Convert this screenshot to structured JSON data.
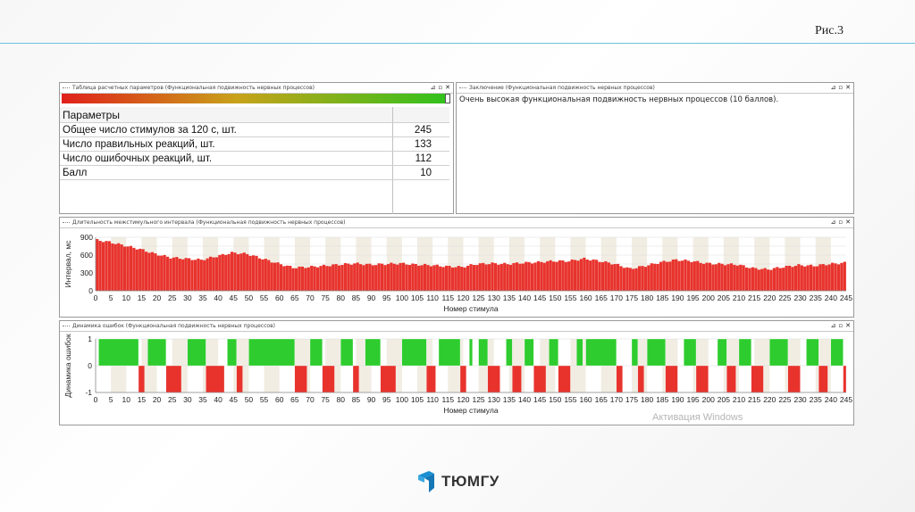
{
  "slide": {
    "title": "Рис.3"
  },
  "params_panel": {
    "title": "Таблица расчетных параметров (Функциональная подвижность нервных процессов)",
    "header": "Параметры",
    "rows": [
      {
        "label": "Общее число стимулов за 120 с, шт.",
        "value": "245"
      },
      {
        "label": "Число правильных реакций, шт.",
        "value": "133"
      },
      {
        "label": "Число ошибочных реакций, шт.",
        "value": "112"
      },
      {
        "label": "Балл",
        "value": "10"
      }
    ],
    "colors": {
      "gradient_start": "#e0201a",
      "gradient_end": "#2fc21c"
    }
  },
  "conclusion_panel": {
    "title": "Заключение (Функциональная подвижность нервных процессов)",
    "text": "Очень высокая функциональная подвижность нервных процессов (10 баллов)."
  },
  "interval_panel": {
    "title": "Длительность межстимульного интервала (Функциональная подвижность нервных процессов)"
  },
  "errors_panel": {
    "title": "Динамика ошибок (Функциональная подвижность нервных процессов)"
  },
  "window_controls": {
    "pin": "⊿",
    "restore": "▫",
    "close": "✕"
  },
  "watermark": "Активация Windows",
  "logo": {
    "text": "ТЮМГУ",
    "color": "#1a8fd1"
  },
  "chart_data": [
    {
      "type": "bar",
      "title": "",
      "xlabel": "Номер стимула",
      "ylabel": "Интервал, мс",
      "xlim": [
        0,
        245
      ],
      "ylim": [
        0,
        900
      ],
      "xticks": [
        0,
        5,
        10,
        15,
        20,
        25,
        30,
        35,
        40,
        45,
        50,
        55,
        60,
        65,
        70,
        75,
        80,
        85,
        90,
        95,
        100,
        105,
        110,
        115,
        120,
        125,
        130,
        135,
        140,
        145,
        150,
        155,
        160,
        165,
        170,
        175,
        180,
        185,
        190,
        195,
        200,
        205,
        210,
        215,
        220,
        225,
        230,
        235,
        240,
        245
      ],
      "yticks": [
        0,
        150,
        300,
        450,
        600,
        750,
        900
      ],
      "ytick_labels": [
        "0",
        "",
        "300",
        "",
        "600",
        "",
        "900"
      ],
      "color": "#e8332d",
      "grid": true,
      "anchors": [
        [
          0,
          860
        ],
        [
          5,
          820
        ],
        [
          10,
          760
        ],
        [
          15,
          700
        ],
        [
          20,
          620
        ],
        [
          25,
          560
        ],
        [
          30,
          540
        ],
        [
          35,
          520
        ],
        [
          40,
          580
        ],
        [
          45,
          640
        ],
        [
          50,
          620
        ],
        [
          55,
          540
        ],
        [
          60,
          460
        ],
        [
          65,
          390
        ],
        [
          70,
          400
        ],
        [
          75,
          420
        ],
        [
          80,
          440
        ],
        [
          85,
          460
        ],
        [
          90,
          440
        ],
        [
          95,
          450
        ],
        [
          100,
          460
        ],
        [
          105,
          440
        ],
        [
          110,
          430
        ],
        [
          115,
          410
        ],
        [
          120,
          400
        ],
        [
          125,
          450
        ],
        [
          130,
          460
        ],
        [
          135,
          450
        ],
        [
          140,
          470
        ],
        [
          145,
          480
        ],
        [
          150,
          500
        ],
        [
          155,
          500
        ],
        [
          160,
          540
        ],
        [
          165,
          500
        ],
        [
          170,
          450
        ],
        [
          175,
          370
        ],
        [
          180,
          420
        ],
        [
          185,
          480
        ],
        [
          190,
          520
        ],
        [
          195,
          500
        ],
        [
          200,
          460
        ],
        [
          205,
          450
        ],
        [
          210,
          440
        ],
        [
          215,
          380
        ],
        [
          220,
          360
        ],
        [
          225,
          400
        ],
        [
          230,
          430
        ],
        [
          235,
          420
        ],
        [
          240,
          450
        ],
        [
          245,
          470
        ]
      ]
    },
    {
      "type": "bar",
      "title": "",
      "xlabel": "Номер стимула",
      "ylabel": "Динамика ошибок",
      "xlim": [
        0,
        245
      ],
      "ylim": [
        -1,
        1
      ],
      "xticks": [
        0,
        5,
        10,
        15,
        20,
        25,
        30,
        35,
        40,
        45,
        50,
        55,
        60,
        65,
        70,
        75,
        80,
        85,
        90,
        95,
        100,
        105,
        110,
        115,
        120,
        125,
        130,
        135,
        140,
        145,
        150,
        155,
        160,
        165,
        170,
        175,
        180,
        185,
        190,
        195,
        200,
        205,
        210,
        215,
        220,
        225,
        230,
        235,
        240,
        245
      ],
      "yticks": [
        -1,
        0,
        1
      ],
      "series": [
        {
          "name": "",
          "color": "#2ecc2e",
          "value": 1
        },
        {
          "name": "",
          "color": "#e8332d",
          "value": -1
        }
      ],
      "correct_ranges": [
        [
          1,
          14
        ],
        [
          17,
          23
        ],
        [
          30,
          36
        ],
        [
          43,
          46
        ],
        [
          50,
          65
        ],
        [
          70,
          74
        ],
        [
          80,
          84
        ],
        [
          88,
          93
        ],
        [
          100,
          108
        ],
        [
          112,
          119
        ],
        [
          122,
          123
        ],
        [
          125,
          128
        ],
        [
          134,
          136
        ],
        [
          140,
          143
        ],
        [
          148,
          151
        ],
        [
          157,
          159
        ],
        [
          160,
          170
        ],
        [
          175,
          177
        ],
        [
          180,
          186
        ],
        [
          192,
          196
        ],
        [
          203,
          206
        ],
        [
          210,
          214
        ],
        [
          220,
          226
        ],
        [
          232,
          236
        ],
        [
          240,
          244
        ]
      ],
      "error_ranges": [
        [
          14,
          16
        ],
        [
          23,
          28
        ],
        [
          36,
          42
        ],
        [
          46,
          48
        ],
        [
          65,
          69
        ],
        [
          74,
          78
        ],
        [
          84,
          86
        ],
        [
          93,
          98
        ],
        [
          108,
          111
        ],
        [
          119,
          121
        ],
        [
          128,
          132
        ],
        [
          136,
          139
        ],
        [
          143,
          147
        ],
        [
          151,
          155
        ],
        [
          170,
          172
        ],
        [
          177,
          179
        ],
        [
          186,
          190
        ],
        [
          196,
          200
        ],
        [
          206,
          209
        ],
        [
          214,
          218
        ],
        [
          226,
          230
        ],
        [
          236,
          239
        ],
        [
          244,
          245
        ]
      ]
    }
  ]
}
